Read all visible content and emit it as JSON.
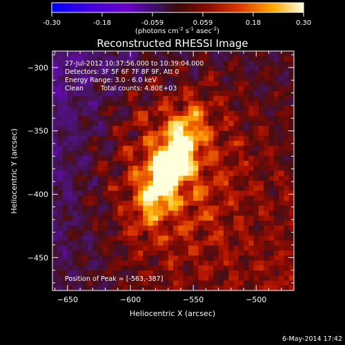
{
  "chart_data": {
    "type": "heatmap",
    "title": "Reconstructed RHESSI Image",
    "xlabel": "Heliocentric X (arcsec)",
    "ylabel": "Heliocentric Y (arcsec)",
    "xlim": [
      -662,
      -470
    ],
    "ylim": [
      -476,
      -287
    ],
    "x_ticks": [
      -650,
      -600,
      -550,
      -500
    ],
    "y_ticks": [
      -300,
      -350,
      -400,
      -450
    ],
    "colorbar": {
      "range": [
        -0.3,
        0.3
      ],
      "ticks": [
        "-0.30",
        "-0.18",
        "-0.059",
        "0.059",
        "0.18",
        "0.30"
      ],
      "label_pre": "(photons cm",
      "label_exp1": "-2",
      "label_mid": " s",
      "label_exp2": "-1",
      "label_mid2": " asec",
      "label_exp3": "-2",
      "label_post": ")"
    },
    "annotations": {
      "time_range": "27-Jul-2012 10:37:56.000 to 10:39:04.000",
      "detectors": "Detectors: 3F 5F 6F 7F 8F 9F, Att 0",
      "energy": "Energy Range: 3.0 - 6.0 keV",
      "clean_method": "Clean",
      "total_counts": "Total counts: 4.80E+03",
      "peak": "Position of Peak = [-563,-387]"
    },
    "peak_position": [
      -563,
      -387
    ],
    "grid": false,
    "colormap": [
      "#0000ff",
      "#6a00c8",
      "#3a1470",
      "#6a0d0d",
      "#d82a00",
      "#ffb000",
      "#ffffd8"
    ]
  },
  "footer": {
    "date": "6-May-2014 17:42"
  }
}
